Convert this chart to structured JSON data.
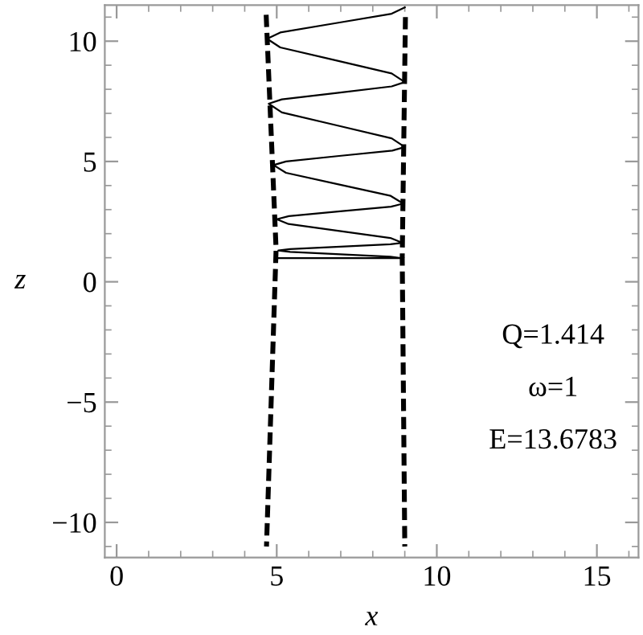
{
  "chart_data": {
    "type": "line",
    "xlabel": "x",
    "ylabel": "z",
    "xlim": [
      -0.37,
      16.3
    ],
    "ylim": [
      -11.46,
      11.5
    ],
    "xticks": [
      0,
      5,
      10,
      15
    ],
    "yticks": [
      -10,
      -5,
      0,
      5,
      10
    ],
    "grid": false,
    "legend": false,
    "marker": "none",
    "series": [
      {
        "color": "#000000",
        "line_style": "solid",
        "x": [
          5.05,
          8.92,
          8.55,
          6.99,
          5.42,
          5.05,
          5.42,
          6.99,
          8.55,
          8.92,
          8.55,
          6.96,
          5.37,
          5.0,
          5.38,
          6.98,
          8.57,
          8.95,
          8.56,
          6.93,
          5.29,
          4.9,
          5.29,
          6.95,
          8.61,
          9.0,
          8.59,
          6.88,
          5.16,
          4.75,
          5.16,
          6.88,
          8.59,
          9.0,
          8.59,
          6.85,
          5.11,
          4.7,
          5.11,
          6.85,
          8.59,
          9.0
        ],
        "values": [
          0.98,
          0.98,
          1.04,
          1.14,
          1.24,
          1.3,
          1.36,
          1.46,
          1.56,
          1.62,
          1.82,
          2.11,
          2.4,
          2.6,
          2.73,
          2.93,
          3.12,
          3.25,
          3.57,
          4.05,
          4.53,
          4.85,
          5.0,
          5.23,
          5.45,
          5.6,
          5.96,
          6.5,
          7.04,
          7.4,
          7.58,
          7.85,
          8.12,
          8.3,
          8.66,
          9.2,
          9.74,
          10.1,
          10.36,
          10.75,
          11.14,
          11.4
        ]
      },
      {
        "color": "#000000",
        "line_style": "dashed",
        "x": [
          4.67,
          4.98,
          4.68
        ],
        "values": [
          11.1,
          1.35,
          -11.0
        ]
      },
      {
        "color": "#000000",
        "line_style": "dashed",
        "x": [
          9.02,
          8.92,
          9.0
        ],
        "values": [
          11.0,
          1.0,
          -11.0
        ]
      }
    ],
    "annotations": [
      "Q=1.414",
      "ω=1",
      "E=13.6783"
    ]
  }
}
